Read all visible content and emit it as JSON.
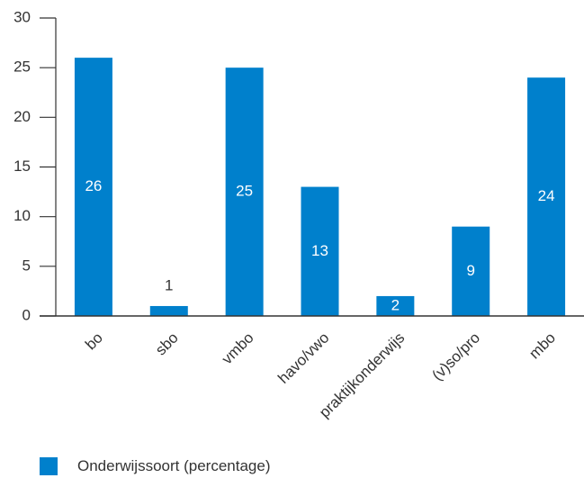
{
  "colors": {
    "bar": "#0080CC",
    "axis": "#333333",
    "grid": "#333333",
    "label_inside": "#ffffff",
    "label_outside": "#333333"
  },
  "chart_data": {
    "type": "bar",
    "title": "",
    "xlabel": "",
    "ylabel": "",
    "categories": [
      "bo",
      "sbo",
      "vmbo",
      "havo/vwo",
      "praktijkonderwijs",
      "(v)so/pro",
      "mbo"
    ],
    "series": [
      {
        "name": "Onderwijssoort (percentage)",
        "values": [
          26,
          1,
          25,
          13,
          2,
          9,
          24
        ]
      }
    ],
    "ylim": [
      0,
      30
    ],
    "yticks": [
      0,
      5,
      10,
      15,
      20,
      25,
      30
    ],
    "yticks_labels": [
      "0",
      "5",
      "10",
      "15",
      "20",
      "25",
      "30"
    ],
    "data_labels": [
      "26",
      "1",
      "25",
      "13",
      "2",
      "9",
      "24"
    ],
    "grid": false,
    "legend_position": "bottom-left"
  },
  "legend": {
    "items": [
      {
        "label": "Onderwijssoort (percentage)"
      }
    ]
  }
}
